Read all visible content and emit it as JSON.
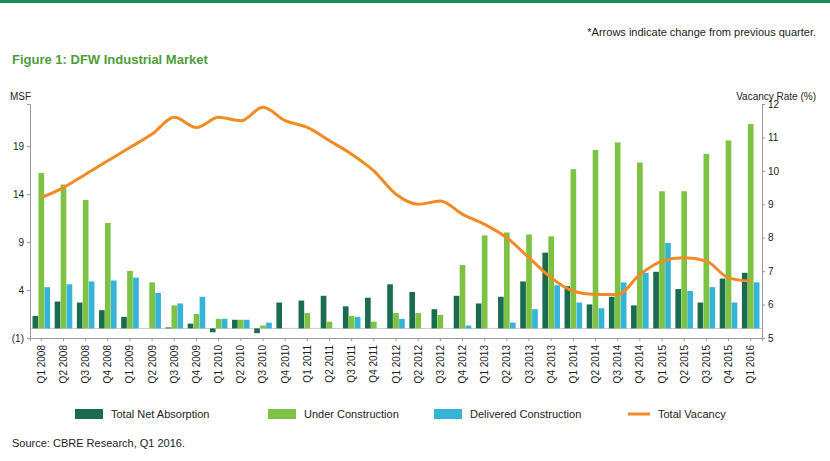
{
  "chart_data": {
    "type": "bar",
    "title": "Figure 1: DFW Industrial Market",
    "annotations": [
      "*Arrows indicate change from previous quarter.",
      "Source: CBRE Research, Q1 2016."
    ],
    "ylabel": "MSF",
    "y2label": "Vacancy Rate (%)",
    "categories": [
      "Q1 2008",
      "Q2 2008",
      "Q3 2008",
      "Q4 2008",
      "Q1 2009",
      "Q2 2009",
      "Q3 2009",
      "Q4 2009",
      "Q1 2010",
      "Q2 2010",
      "Q3 2010",
      "Q4 2010",
      "Q1 2011",
      "Q2 2011",
      "Q3 2011",
      "Q4 2011",
      "Q1 2012",
      "Q2 2012",
      "Q3 2012",
      "Q4 2012",
      "Q1 2013",
      "Q2 2013",
      "Q3 2013",
      "Q4 2013",
      "Q1 2014",
      "Q2 2014",
      "Q3 2014",
      "Q4 2014",
      "Q1 2015",
      "Q2 2015",
      "Q3 2015",
      "Q4 2015",
      "Q1 2016"
    ],
    "series": [
      {
        "name": "Total Net Absorption",
        "type": "bar",
        "color": "#1b6b4e",
        "values": [
          1.3,
          2.8,
          2.7,
          1.9,
          1.2,
          0,
          0.1,
          0.5,
          -0.4,
          0.9,
          -0.5,
          2.7,
          2.9,
          3.4,
          2.3,
          3.2,
          4.6,
          3.8,
          2.0,
          3.4,
          2.6,
          3.3,
          4.9,
          7.9,
          4.4,
          2.5,
          3.3,
          2.4,
          5.9,
          4.1,
          2.7,
          5.2,
          5.8
        ]
      },
      {
        "name": "Under Construction",
        "type": "bar",
        "color": "#7dc242",
        "values": [
          16.2,
          15.0,
          13.4,
          11.0,
          6.0,
          4.8,
          2.4,
          1.5,
          1.0,
          0.9,
          0.3,
          0,
          1.6,
          0.7,
          1.3,
          0.7,
          1.6,
          1.6,
          1.4,
          6.6,
          9.7,
          10.0,
          9.8,
          9.6,
          16.6,
          18.6,
          19.4,
          17.3,
          14.3,
          14.3,
          18.2,
          19.6,
          21.3
        ]
      },
      {
        "name": "Delivered Construction",
        "type": "bar",
        "color": "#35b4d8",
        "values": [
          4.3,
          4.6,
          4.9,
          5.0,
          5.3,
          3.7,
          2.6,
          3.3,
          1.0,
          0.9,
          0.6,
          0,
          0,
          0,
          1.2,
          0,
          1.0,
          0,
          0,
          0.3,
          0,
          0.6,
          2.0,
          4.5,
          2.7,
          2.1,
          4.8,
          5.8,
          8.9,
          3.9,
          4.3,
          2.7,
          4.8
        ]
      },
      {
        "name": "Total Vacancy",
        "type": "line",
        "axis": "y2",
        "color": "#f28a25",
        "values": [
          9.2,
          9.5,
          9.9,
          10.3,
          10.7,
          11.1,
          11.6,
          11.3,
          11.6,
          11.5,
          11.9,
          11.5,
          11.3,
          10.9,
          10.5,
          10.0,
          9.3,
          9.0,
          9.1,
          8.7,
          8.4,
          8.0,
          7.4,
          6.8,
          6.4,
          6.3,
          6.3,
          6.9,
          7.3,
          7.4,
          7.3,
          6.8,
          6.7
        ]
      }
    ],
    "ylim": [
      -1,
      23.4
    ],
    "yticks": [
      {
        "value": -1,
        "label": "(1)"
      },
      4,
      9,
      14,
      19
    ],
    "y2lim": [
      5,
      12
    ],
    "y2ticks": [
      5,
      6,
      7,
      8,
      9,
      10,
      11,
      12
    ],
    "grid": false,
    "legend": "bottom"
  }
}
